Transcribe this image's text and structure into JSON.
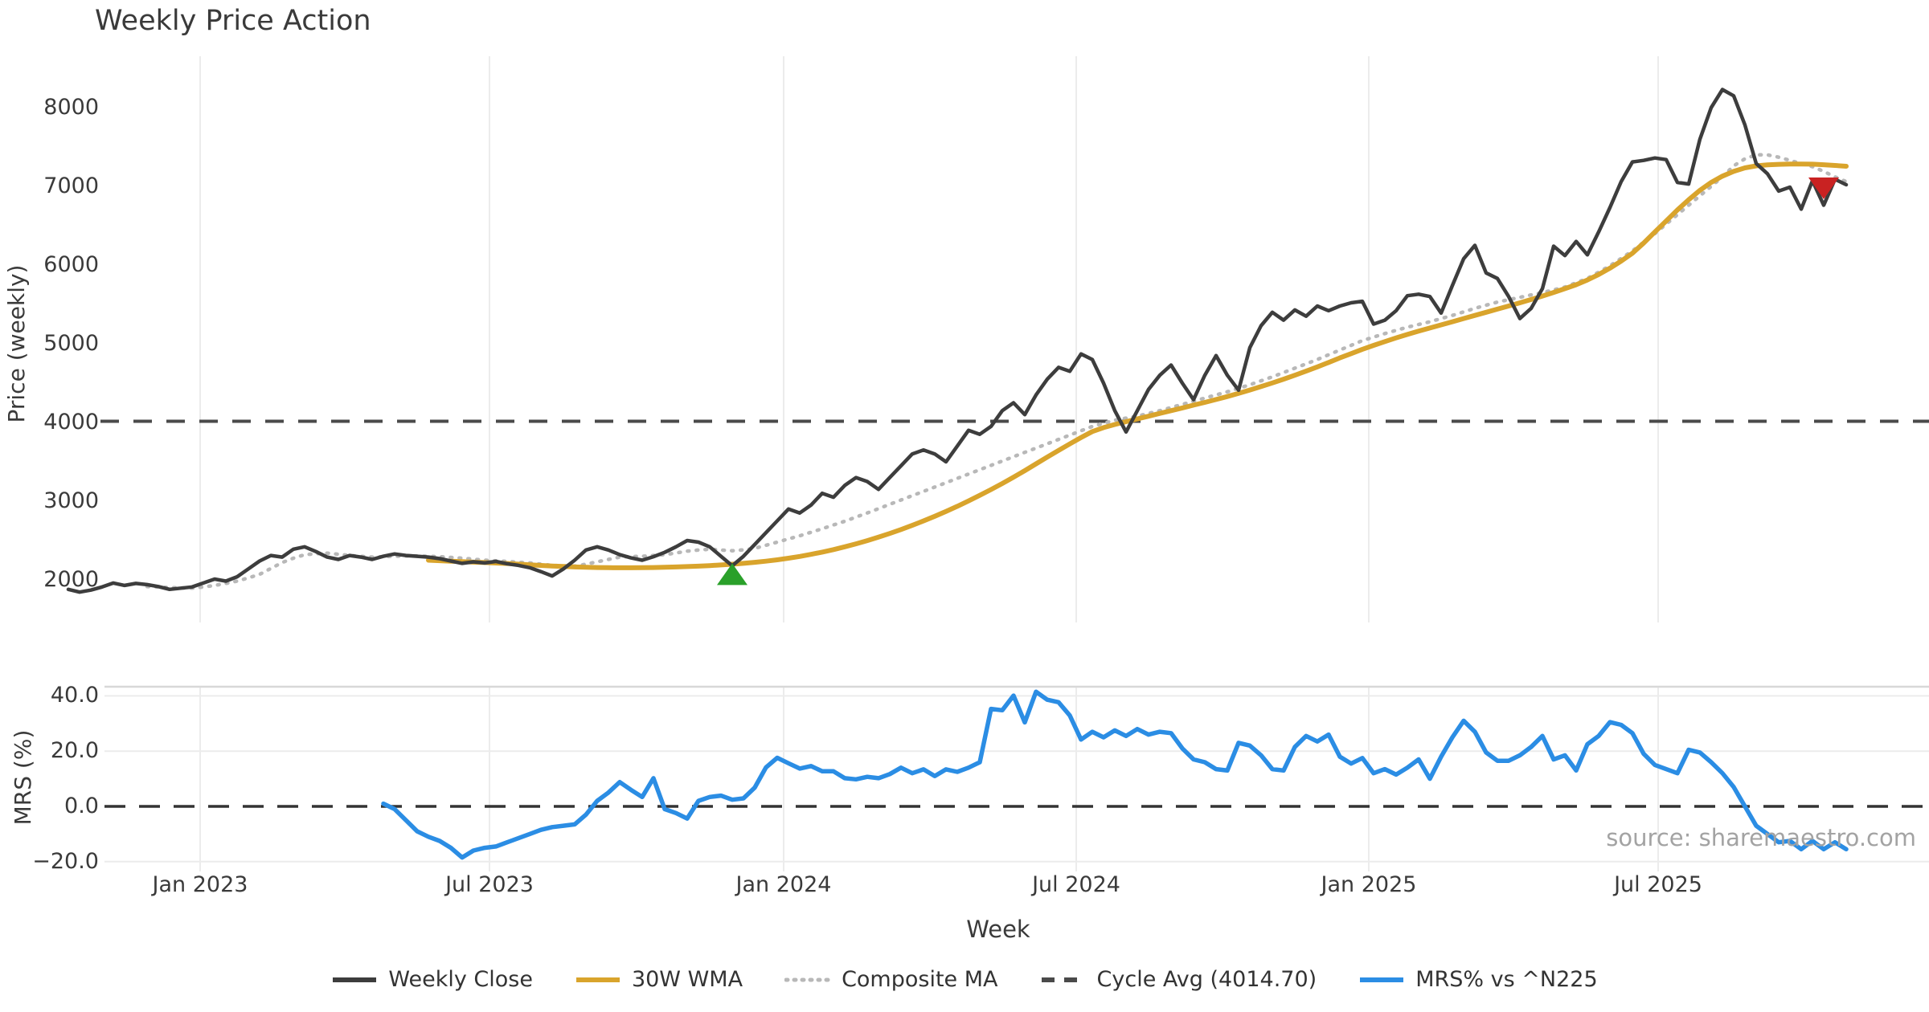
{
  "header": {
    "title": "Weekly Price Action"
  },
  "source_credit": "source: sharemaestro.com",
  "chart_data": {
    "type": "line",
    "title": "Weekly Price Action",
    "xlabel": "Week",
    "x_tick_labels": [
      "Jan 2023",
      "Jul 2023",
      "Jan 2024",
      "Jul 2024",
      "Jan 2025",
      "Jul 2025"
    ],
    "grid": true,
    "legend_position": "bottom-center",
    "panels": [
      {
        "name": "price",
        "ylabel": "Price (weekly)",
        "y_tick_labels": [
          "8000",
          "7000",
          "6000",
          "5000",
          "4000",
          "3000",
          "2000"
        ],
        "y_tick_values": [
          8000,
          7000,
          6000,
          5000,
          4000,
          3000,
          2000
        ],
        "ylim": [
          1550,
          8650
        ],
        "series": [
          {
            "name": "Weekly Close",
            "color": "#3d3d3d",
            "style": "solid",
            "width": 4.5,
            "start_index": 0,
            "values": [
              1880,
              1845,
              1870,
              1910,
              1960,
              1930,
              1955,
              1940,
              1915,
              1880,
              1895,
              1910,
              1960,
              2010,
              1985,
              2040,
              2140,
              2240,
              2310,
              2290,
              2390,
              2420,
              2360,
              2290,
              2260,
              2310,
              2290,
              2260,
              2300,
              2330,
              2310,
              2300,
              2290,
              2270,
              2240,
              2210,
              2230,
              2215,
              2235,
              2205,
              2185,
              2155,
              2105,
              2050,
              2140,
              2250,
              2380,
              2420,
              2380,
              2320,
              2280,
              2250,
              2295,
              2350,
              2420,
              2500,
              2480,
              2420,
              2300,
              2180,
              2300,
              2450,
              2600,
              2750,
              2900,
              2850,
              2950,
              3100,
              3050,
              3200,
              3300,
              3250,
              3150,
              3300,
              3450,
              3600,
              3650,
              3600,
              3500,
              3700,
              3900,
              3850,
              3950,
              4150,
              4250,
              4100,
              4350,
              4550,
              4700,
              4650,
              4870,
              4800,
              4500,
              4150,
              3880,
              4150,
              4420,
              4600,
              4730,
              4500,
              4290,
              4600,
              4850,
              4600,
              4410,
              4950,
              5230,
              5400,
              5300,
              5430,
              5350,
              5480,
              5420,
              5480,
              5520,
              5540,
              5250,
              5300,
              5420,
              5610,
              5630,
              5600,
              5390,
              5740,
              6080,
              6250,
              5900,
              5830,
              5600,
              5320,
              5450,
              5700,
              6240,
              6120,
              6300,
              6130,
              6420,
              6730,
              7060,
              7310,
              7330,
              7360,
              7340,
              7050,
              7030,
              7600,
              8000,
              8230,
              8150,
              7780,
              7290,
              7160,
              6940,
              6990,
              6710,
              7070,
              6760,
              7090,
              7020
            ]
          },
          {
            "name": "30W WMA",
            "color": "#d9a42c",
            "style": "solid",
            "width": 6,
            "start_index": 32,
            "values": [
              2250,
              2244,
              2238,
              2232,
              2226,
              2220,
              2214,
              2208,
              2200,
              2192,
              2184,
              2176,
              2170,
              2164,
              2160,
              2157,
              2155,
              2154,
              2154,
              2155,
              2157,
              2160,
              2164,
              2169,
              2175,
              2182,
              2190,
              2199,
              2210,
              2223,
              2238,
              2255,
              2275,
              2298,
              2324,
              2353,
              2385,
              2420,
              2458,
              2499,
              2543,
              2590,
              2640,
              2693,
              2749,
              2808,
              2870,
              2935,
              3003,
              3074,
              3148,
              3225,
              3305,
              3388,
              3474,
              3560,
              3645,
              3728,
              3808,
              3885,
              3935,
              3975,
              4010,
              4045,
              4080,
              4115,
              4150,
              4185,
              4220,
              4255,
              4292,
              4330,
              4370,
              4412,
              4456,
              4502,
              4550,
              4600,
              4652,
              4706,
              4762,
              4820,
              4875,
              4930,
              4980,
              5028,
              5074,
              5118,
              5160,
              5200,
              5240,
              5280,
              5320,
              5360,
              5400,
              5440,
              5480,
              5520,
              5562,
              5606,
              5652,
              5700,
              5750,
              5810,
              5880,
              5960,
              6050,
              6150,
              6280,
              6420,
              6560,
              6700,
              6830,
              6950,
              7050,
              7130,
              7190,
              7235,
              7260,
              7272,
              7280,
              7283,
              7284,
              7282,
              7275,
              7265,
              7255
            ]
          },
          {
            "name": "Composite MA",
            "color": "#b8b8b8",
            "style": "dotted",
            "width": 4.5,
            "start_index": 7,
            "values": [
              1915,
              1910,
              1902,
              1898,
              1895,
              1910,
              1930,
              1955,
              1985,
              2025,
              2070,
              2145,
              2220,
              2275,
              2320,
              2332,
              2340,
              2326,
              2310,
              2300,
              2290,
              2295,
              2300,
              2303,
              2305,
              2300,
              2295,
              2286,
              2275,
              2263,
              2250,
              2243,
              2235,
              2225,
              2215,
              2200,
              2185,
              2179,
              2175,
              2200,
              2230,
              2260,
              2290,
              2296,
              2300,
              2310,
              2320,
              2342,
              2365,
              2380,
              2390,
              2380,
              2370,
              2382,
              2400,
              2440,
              2480,
              2520,
              2560,
              2605,
              2650,
              2698,
              2745,
              2798,
              2850,
              2905,
              2960,
              3015,
              3070,
              3125,
              3180,
              3235,
              3290,
              3345,
              3400,
              3455,
              3510,
              3565,
              3620,
              3675,
              3730,
              3785,
              3840,
              3895,
              3950,
              3990,
              4030,
              4055,
              4080,
              4115,
              4150,
              4190,
              4230,
              4270,
              4310,
              4350,
              4390,
              4435,
              4480,
              4530,
              4580,
              4635,
              4690,
              4745,
              4800,
              4860,
              4920,
              4980,
              5040,
              5085,
              5130,
              5170,
              5210,
              5245,
              5280,
              5320,
              5360,
              5405,
              5450,
              5490,
              5530,
              5560,
              5590,
              5620,
              5650,
              5685,
              5720,
              5775,
              5830,
              5910,
              5990,
              6085,
              6180,
              6290,
              6400,
              6520,
              6640,
              6760,
              6880,
              7000,
              7120,
              7260,
              7350,
              7400,
              7400,
              7370,
              7330,
              7290,
              7250,
              7190,
              7120,
              7060
            ]
          },
          {
            "name": "Cycle Avg",
            "color": "#4a4a4a",
            "style": "dashed",
            "width": 4,
            "value": 4014.7
          }
        ],
        "markers": [
          {
            "type": "buy-signal",
            "shape": "triangle-up",
            "color": "#2aa02a",
            "index": 59,
            "price": 2200
          },
          {
            "type": "sell-signal",
            "shape": "triangle-down",
            "color": "#c92222",
            "index": 156,
            "price": 7000
          }
        ]
      },
      {
        "name": "mrs",
        "ylabel": "MRS (%)",
        "y_tick_labels": [
          "40.0",
          "20.0",
          "0.0",
          "−20.0"
        ],
        "y_tick_values": [
          40,
          20,
          0,
          -20
        ],
        "ylim": [
          -24,
          44
        ],
        "zero_line": true,
        "series": [
          {
            "name": "MRS% vs ^N225",
            "color": "#2b8de4",
            "style": "solid",
            "width": 5.5,
            "start_index": 28,
            "values": [
              1,
              -1,
              -5,
              -9,
              -11,
              -12.5,
              -15,
              -18.5,
              -16,
              -15,
              -14.5,
              -13,
              -11.5,
              -10,
              -8.5,
              -7.5,
              -7,
              -6.5,
              -3,
              2,
              5,
              8.8,
              6,
              3.4,
              10.2,
              -1,
              -2.4,
              -4.4,
              2,
              3.4,
              3.9,
              2.4,
              2.9,
              6.8,
              14.1,
              17.6,
              15.6,
              13.7,
              14.6,
              12.7,
              12.7,
              10.2,
              9.8,
              10.7,
              10.2,
              11.7,
              14,
              12,
              13.4,
              11,
              13.4,
              12.5,
              14,
              16,
              35.3,
              34.8,
              40.1,
              30.4,
              41.5,
              38.6,
              37.7,
              32.9,
              24.2,
              27,
              25,
              27.5,
              25.5,
              28,
              26,
              27,
              26.5,
              21,
              17,
              16,
              13.5,
              13,
              23,
              22,
              18.5,
              13.5,
              13,
              21.5,
              25.5,
              23.5,
              26,
              18,
              15.5,
              17.5,
              12,
              13.5,
              11.5,
              14,
              17,
              10,
              18,
              25,
              31,
              27,
              19.5,
              16.5,
              16.5,
              18.5,
              21.5,
              25.5,
              17,
              18.5,
              13,
              22.5,
              25.5,
              30.5,
              29.5,
              26.5,
              19,
              15,
              13.5,
              12,
              20.5,
              19.5,
              16,
              12,
              7,
              0,
              -7,
              -10,
              -13,
              -12.5,
              -15.5,
              -12.5,
              -15.5,
              -13,
              -15.5
            ]
          }
        ]
      }
    ],
    "legend": {
      "items": [
        {
          "label": "Weekly Close",
          "color": "#3d3d3d",
          "style": "solid"
        },
        {
          "label": "30W WMA",
          "color": "#d9a42c",
          "style": "solid"
        },
        {
          "label": "Composite MA",
          "color": "#b8b8b8",
          "style": "dotted"
        },
        {
          "label": "Cycle Avg (4014.70)",
          "color": "#4a4a4a",
          "style": "dashed"
        },
        {
          "label": "MRS% vs ^N225",
          "color": "#2b8de4",
          "style": "solid"
        }
      ]
    }
  }
}
